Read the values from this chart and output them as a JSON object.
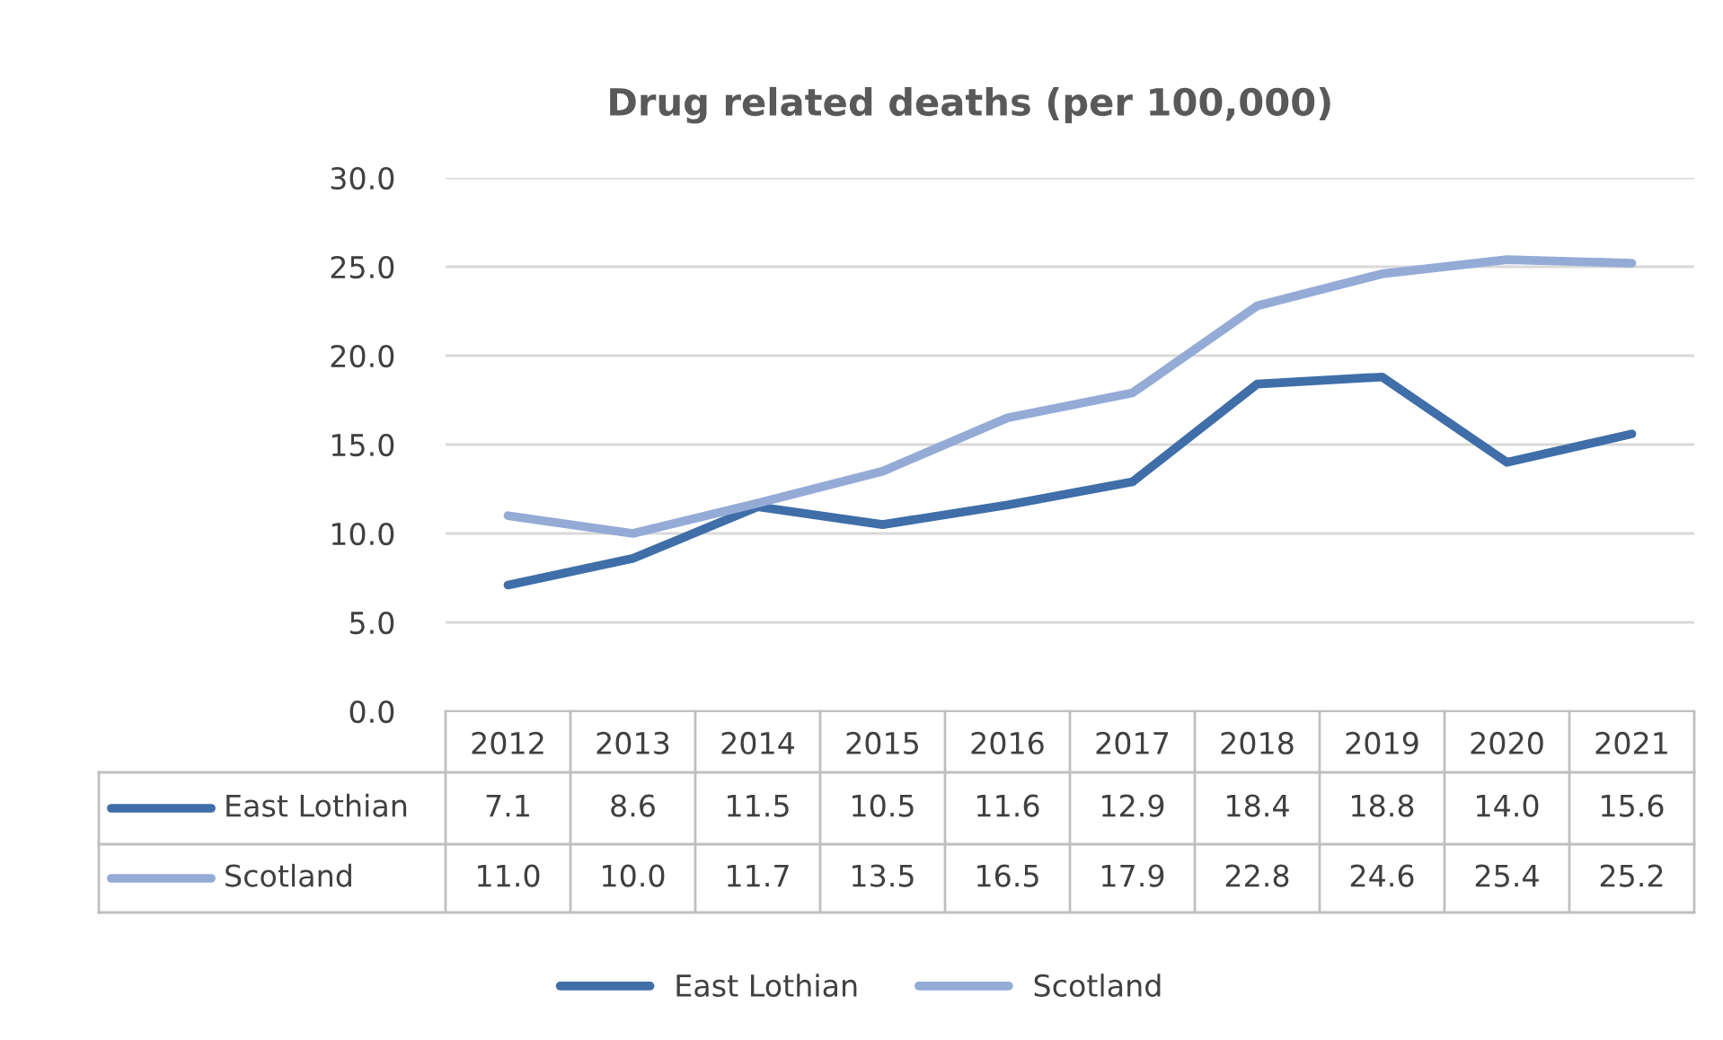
{
  "chart_data": {
    "type": "line",
    "title": "Drug related deaths (per 100,000)",
    "categories": [
      "2012",
      "2013",
      "2014",
      "2015",
      "2016",
      "2017",
      "2018",
      "2019",
      "2020",
      "2021"
    ],
    "series": [
      {
        "name": "East Lothian",
        "color": "#3f6ea8",
        "values": [
          7.1,
          8.6,
          11.5,
          10.5,
          11.6,
          12.9,
          18.4,
          18.8,
          14.0,
          15.6
        ],
        "value_labels": [
          "7.1",
          "8.6",
          "11.5",
          "10.5",
          "11.6",
          "12.9",
          "18.4",
          "18.8",
          "14.0",
          "15.6"
        ]
      },
      {
        "name": "Scotland",
        "color": "#94abd6",
        "values": [
          11.0,
          10.0,
          11.7,
          13.5,
          16.5,
          17.9,
          22.8,
          24.6,
          25.4,
          25.2
        ],
        "value_labels": [
          "11.0",
          "10.0",
          "11.7",
          "13.5",
          "16.5",
          "17.9",
          "22.8",
          "24.6",
          "25.4",
          "25.2"
        ]
      }
    ],
    "ylim": [
      0,
      30
    ],
    "yticks": [
      {
        "value": 0,
        "label": "0.0"
      },
      {
        "value": 5,
        "label": "5.0"
      },
      {
        "value": 10,
        "label": "10.0"
      },
      {
        "value": 15,
        "label": "15.0"
      },
      {
        "value": 20,
        "label": "20.0"
      },
      {
        "value": 25,
        "label": "25.0"
      },
      {
        "value": 30,
        "label": "30.0"
      }
    ],
    "grid": "y",
    "legend": "bottom",
    "marker": "none",
    "line_style": "solid"
  }
}
